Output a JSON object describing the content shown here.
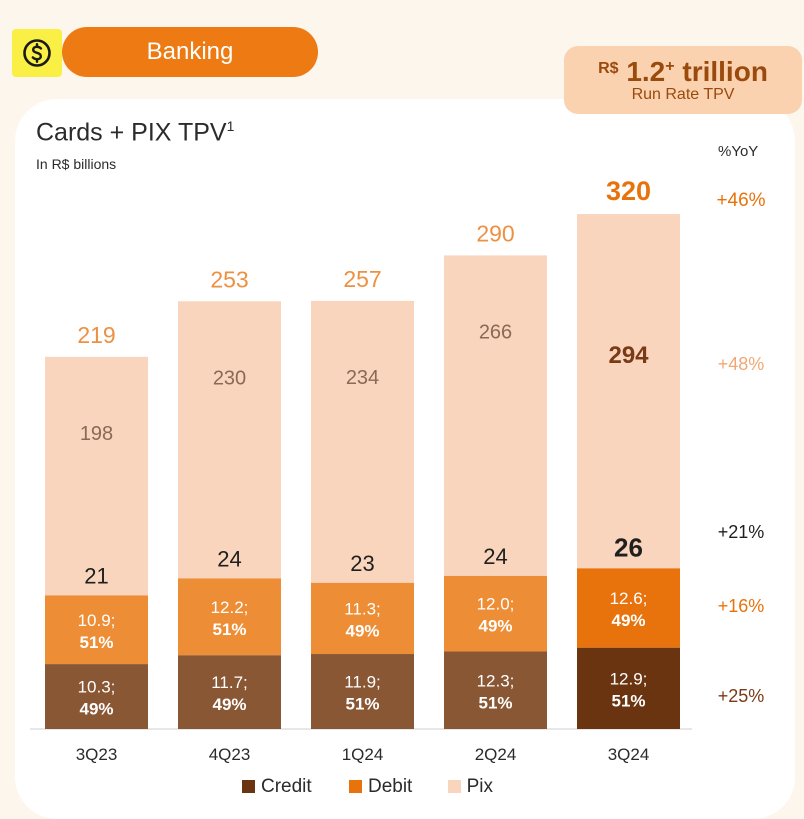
{
  "header": {
    "section_label": "Banking"
  },
  "run_rate": {
    "currency": "R$",
    "value": "1.2",
    "plus": "+",
    "unit": "trillion",
    "label": "Run Rate TPV"
  },
  "colors": {
    "credit": "#8A5735",
    "credit_highlight": "#6B3410",
    "debit": "#ED8E36",
    "debit_highlight": "#E8730D",
    "pix": "#F8D5BC",
    "total_text": "#EE9042",
    "total_highlight": "#E8730D",
    "yoy_total": "#E8730D",
    "yoy_pix": "#F0A877",
    "yoy_cards": "#1F1F1F",
    "yoy_debit": "#E8730D",
    "yoy_credit": "#7A3A16"
  },
  "chart_data": {
    "type": "bar",
    "title": "Cards + PIX TPV",
    "title_footnote": "1",
    "subtitle": "In R$ billions",
    "stacked": true,
    "categories": [
      "3Q23",
      "4Q23",
      "1Q24",
      "2Q24",
      "3Q24"
    ],
    "highlight_category": "3Q24",
    "series": [
      {
        "name": "Credit",
        "values": [
          10.3,
          11.7,
          11.9,
          12.3,
          12.9
        ],
        "share_labels": [
          "49%",
          "49%",
          "51%",
          "51%",
          "51%"
        ]
      },
      {
        "name": "Debit",
        "values": [
          10.9,
          12.2,
          11.3,
          12.0,
          12.6
        ],
        "share_labels": [
          "51%",
          "51%",
          "49%",
          "49%",
          "49%"
        ]
      },
      {
        "name": "Pix",
        "values": [
          198,
          230,
          234,
          266,
          294
        ]
      }
    ],
    "cards_totals": [
      21,
      24,
      23,
      24,
      26
    ],
    "totals": [
      219,
      253,
      257,
      290,
      320
    ],
    "yoy_header": "%YoY",
    "yoy": {
      "total": "+46%",
      "pix": "+48%",
      "cards": "+21%",
      "debit": "+16%",
      "credit": "+25%"
    },
    "legend": [
      "Credit",
      "Debit",
      "Pix"
    ],
    "legend_placement": "bottom"
  }
}
